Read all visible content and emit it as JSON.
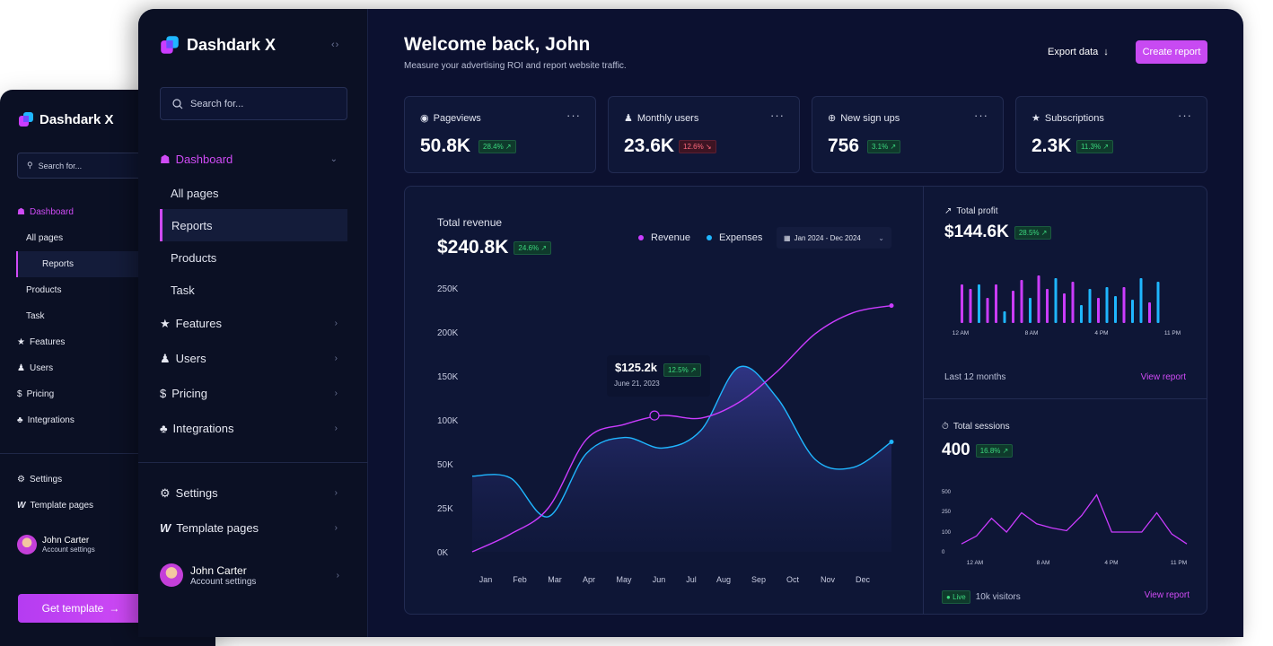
{
  "back_window": {
    "brand": "Dashdark X",
    "search_placeholder": "Search for...",
    "nav": {
      "dashboard": "Dashboard",
      "all_pages": "All pages",
      "reports": "Reports",
      "products": "Products",
      "task": "Task",
      "features": "Features",
      "users": "Users",
      "pricing": "Pricing",
      "integrations": "Integrations",
      "settings": "Settings",
      "template_pages": "Template pages"
    },
    "user": {
      "name": "John Carter",
      "subtitle": "Account settings"
    },
    "cta": "Get template"
  },
  "sidebar": {
    "brand": "Dashdark X",
    "search_placeholder": "Search for...",
    "nav": {
      "dashboard": "Dashboard",
      "all_pages": "All pages",
      "reports": "Reports",
      "products": "Products",
      "task": "Task",
      "features": "Features",
      "users": "Users",
      "pricing": "Pricing",
      "integrations": "Integrations",
      "settings": "Settings",
      "template_pages": "Template pages"
    },
    "user": {
      "name": "John Carter",
      "subtitle": "Account settings"
    }
  },
  "header": {
    "title": "Welcome back, John",
    "subtitle": "Measure your advertising ROI and report website traffic.",
    "export_label": "Export data",
    "create_label": "Create report"
  },
  "stats": [
    {
      "label": "Pageviews",
      "value": "50.8K",
      "change": "28.4%",
      "trend": "up",
      "icon": "eye-icon"
    },
    {
      "label": "Monthly users",
      "value": "23.6K",
      "change": "12.6%",
      "trend": "down",
      "icon": "user-icon"
    },
    {
      "label": "New sign ups",
      "value": "756",
      "change": "3.1%",
      "trend": "up",
      "icon": "plus-circle-icon"
    },
    {
      "label": "Subscriptions",
      "value": "2.3K",
      "change": "11.3%",
      "trend": "up",
      "icon": "star-icon"
    }
  ],
  "revenue": {
    "title": "Total revenue",
    "value": "$240.8K",
    "change": "24.6%",
    "legend_revenue": "Revenue",
    "legend_expenses": "Expenses",
    "date_range": "Jan 2024 - Dec 2024",
    "tooltip_value": "$125.2k",
    "tooltip_change": "12.5%",
    "tooltip_date": "June 21, 2023"
  },
  "profit": {
    "title": "Total profit",
    "value": "$144.6K",
    "change": "28.5%",
    "footer": "Last 12 months",
    "link": "View report"
  },
  "sessions": {
    "title": "Total sessions",
    "value": "400",
    "change": "16.8%",
    "live": "Live",
    "visitors": "10k visitors",
    "link": "View report"
  },
  "colors": {
    "accent": "#cb3cff",
    "expenses": "#1fb6ff",
    "positive": "#3bd77e",
    "negative": "#ff6a7d",
    "background": "#0c1130"
  },
  "chart_data": [
    {
      "type": "line",
      "title": "Total revenue",
      "categories": [
        "Jan",
        "Feb",
        "Mar",
        "Apr",
        "May",
        "Jun",
        "Jul",
        "Aug",
        "Sep",
        "Oct",
        "Nov",
        "Dec"
      ],
      "yticks": [
        "0K",
        "25K",
        "50K",
        "100K",
        "150K",
        "200K",
        "250K"
      ],
      "series": [
        {
          "name": "Revenue",
          "values": [
            0,
            10,
            25,
            78,
            95,
            105,
            102,
            120,
            155,
            198,
            222,
            230
          ]
        },
        {
          "name": "Expenses",
          "values": [
            43,
            42,
            20,
            62,
            80,
            68,
            88,
            160,
            125,
            55,
            48,
            75
          ]
        }
      ]
    },
    {
      "type": "bar",
      "title": "Total profit",
      "xticks": [
        "12 AM",
        "8 AM",
        "4 PM",
        "11 PM"
      ],
      "series": [
        {
          "values": [
            43,
            38,
            43,
            28,
            43,
            13,
            36,
            48,
            28,
            53,
            38,
            50,
            33,
            46,
            20,
            38,
            28,
            40,
            30,
            40,
            26,
            50,
            23,
            46
          ]
        }
      ]
    },
    {
      "type": "line",
      "title": "Total sessions",
      "xticks": [
        "12 AM",
        "8 AM",
        "4 PM",
        "11 PM"
      ],
      "yticks": [
        "0",
        "100",
        "250",
        "500"
      ],
      "series": [
        {
          "values": [
            40,
            80,
            200,
            100,
            240,
            160,
            130,
            110,
            220,
            460,
            100,
            100,
            100,
            240,
            90,
            40
          ]
        }
      ]
    }
  ]
}
